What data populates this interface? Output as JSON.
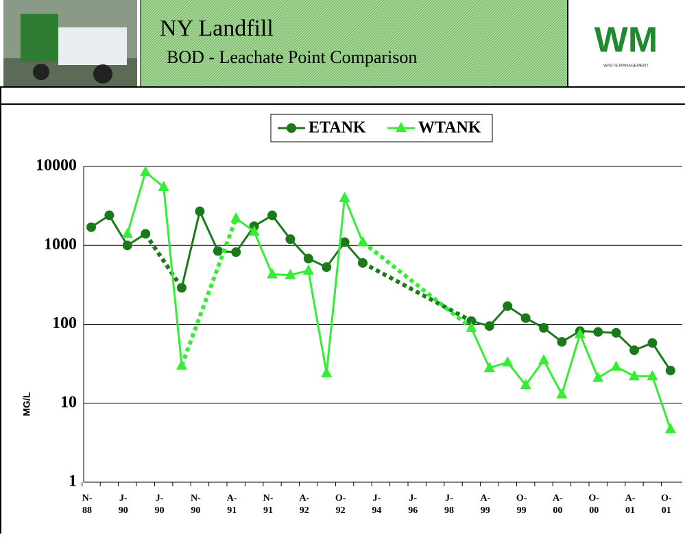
{
  "header": {
    "title": "NY Landfill",
    "subtitle": "BOD - Leachate Point Comparison",
    "logo_text": "WM",
    "logo_caption": "WASTE MANAGEMENT"
  },
  "chart_data": {
    "type": "line",
    "y_label": "MG/L",
    "log_scale": true,
    "grid": true,
    "legend": "top",
    "categories": [
      "N-88",
      null,
      "J-90",
      null,
      "J-90",
      null,
      "N-90",
      null,
      "A-91",
      null,
      "N-91",
      null,
      "A-92",
      null,
      "O-92",
      null,
      "J-94",
      null,
      "J-96",
      null,
      "J-98",
      null,
      "A-99",
      null,
      "O-99",
      null,
      "A-00",
      null,
      "O-00",
      null,
      "A-01",
      null,
      "O-01"
    ],
    "series": [
      {
        "name": "ETANK",
        "color": "#1a7a1a",
        "marker": "circle",
        "values": [
          1700,
          2400,
          1000,
          1400,
          null,
          290,
          2700,
          850,
          820,
          1750,
          2400,
          1200,
          680,
          530,
          1100,
          600,
          null,
          null,
          null,
          null,
          null,
          110,
          95,
          170,
          120,
          90,
          60,
          82,
          80,
          78,
          47,
          58,
          26
        ]
      },
      {
        "name": "WTANK",
        "color": "#33ee33",
        "marker": "triangle",
        "values": [
          null,
          null,
          1400,
          8500,
          5500,
          30,
          null,
          null,
          2200,
          1500,
          430,
          420,
          480,
          24,
          4000,
          1100,
          null,
          null,
          null,
          null,
          null,
          90,
          28,
          33,
          17,
          35,
          13,
          75,
          21,
          29,
          22,
          22,
          4.7
        ]
      }
    ],
    "ylim": [
      1,
      10000
    ],
    "yticks": [
      1,
      10,
      100,
      1000,
      10000
    ]
  }
}
